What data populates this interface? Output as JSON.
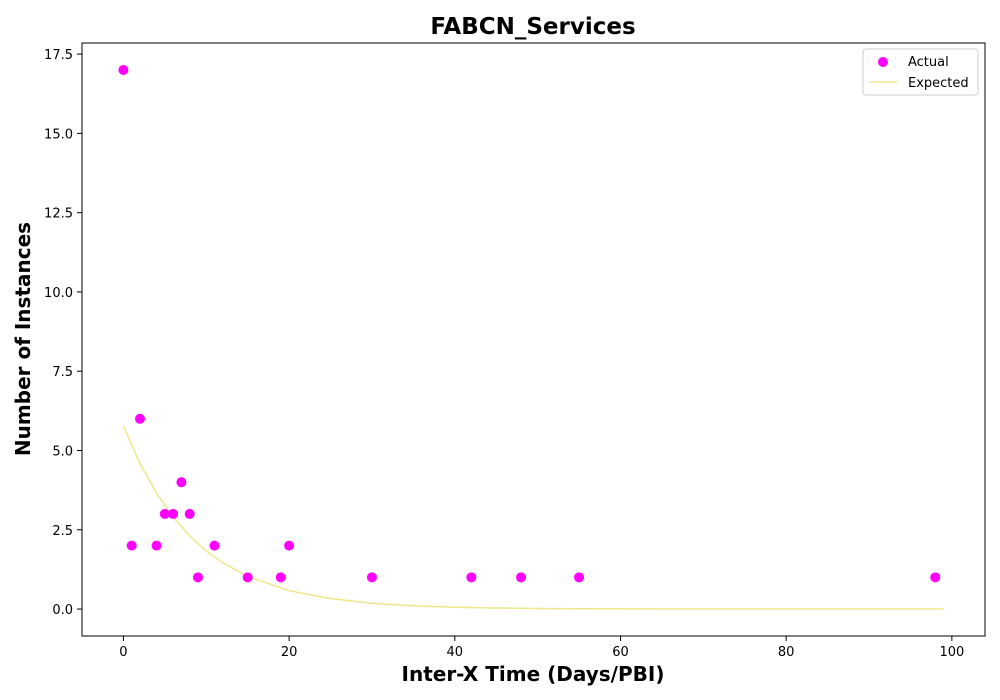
{
  "chart_data": {
    "type": "scatter",
    "title": "FABCN_Services",
    "xlabel": "Inter-X Time (Days/PBI)",
    "ylabel": "Number of Instances",
    "xlim": [
      -5,
      104
    ],
    "ylim": [
      -0.85,
      17.85
    ],
    "xticks": [
      0,
      20,
      40,
      60,
      80,
      100
    ],
    "yticks": [
      0.0,
      2.5,
      5.0,
      7.5,
      10.0,
      12.5,
      15.0,
      17.5
    ],
    "xtick_labels": [
      "0",
      "20",
      "40",
      "60",
      "80",
      "100"
    ],
    "ytick_labels": [
      "0.0",
      "2.5",
      "5.0",
      "7.5",
      "10.0",
      "12.5",
      "15.0",
      "17.5"
    ],
    "legend_position": "top-right",
    "grid": false,
    "series": [
      {
        "name": "Actual",
        "kind": "scatter",
        "color": "#ff00ff",
        "points": [
          [
            0,
            17
          ],
          [
            1,
            2
          ],
          [
            2,
            6
          ],
          [
            4,
            2
          ],
          [
            5,
            3
          ],
          [
            6,
            3
          ],
          [
            7,
            4
          ],
          [
            8,
            3
          ],
          [
            9,
            1
          ],
          [
            11,
            2
          ],
          [
            15,
            1
          ],
          [
            19,
            1
          ],
          [
            20,
            2
          ],
          [
            30,
            1
          ],
          [
            42,
            1
          ],
          [
            48,
            1
          ],
          [
            55,
            1
          ],
          [
            98,
            1
          ]
        ]
      },
      {
        "name": "Expected",
        "kind": "line",
        "color": "#f0e68c",
        "x": [
          0,
          2,
          4,
          6,
          8,
          10,
          12,
          15,
          20,
          25,
          30,
          35,
          40,
          45,
          50,
          55,
          60,
          65,
          70,
          75,
          80,
          85,
          90,
          95,
          99
        ],
        "y": [
          5.78,
          4.59,
          3.65,
          2.9,
          2.31,
          1.83,
          1.46,
          1.03,
          0.58,
          0.33,
          0.18,
          0.1,
          0.058,
          0.033,
          0.018,
          0.01,
          0.006,
          0.003,
          0.002,
          0.001,
          0.001,
          0.0,
          0.0,
          0.0,
          0.0
        ]
      }
    ]
  }
}
